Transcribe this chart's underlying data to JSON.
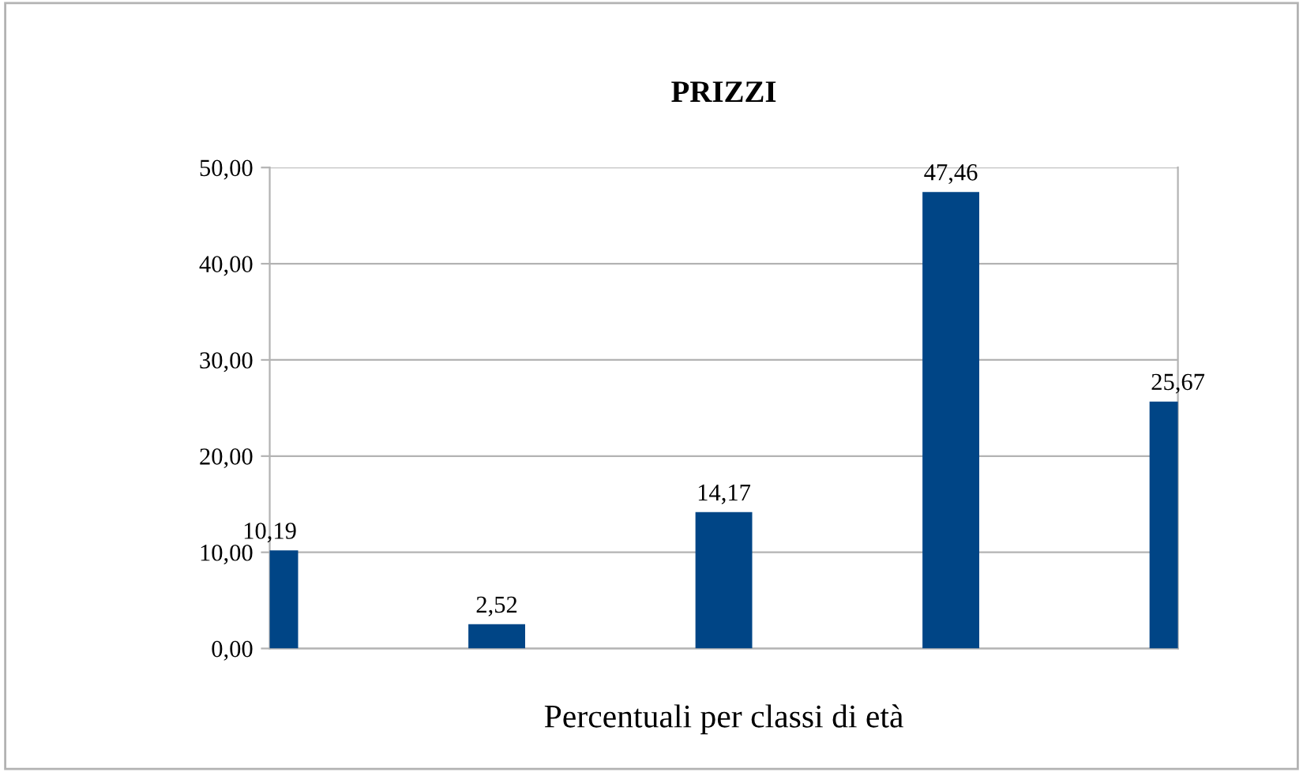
{
  "chart_data": {
    "type": "bar",
    "title": "PRIZZI",
    "xlabel": "Percentuali per classi di età",
    "categories": [
      null,
      null,
      null,
      null,
      null
    ],
    "values": [
      10.19,
      2.52,
      14.17,
      47.46,
      25.67
    ],
    "value_labels": [
      "10,19",
      "2,52",
      "14,17",
      "47,46",
      "25,67"
    ],
    "color": "#004586",
    "ylim": [
      0,
      50
    ],
    "yticks": [
      {
        "value": 0,
        "label": "0,00"
      },
      {
        "value": 10,
        "label": "10,00"
      },
      {
        "value": 20,
        "label": "20,00"
      },
      {
        "value": 30,
        "label": "30,00"
      },
      {
        "value": 40,
        "label": "40,00"
      },
      {
        "value": 50,
        "label": "50,00"
      }
    ],
    "grid": "y",
    "legend": false
  }
}
